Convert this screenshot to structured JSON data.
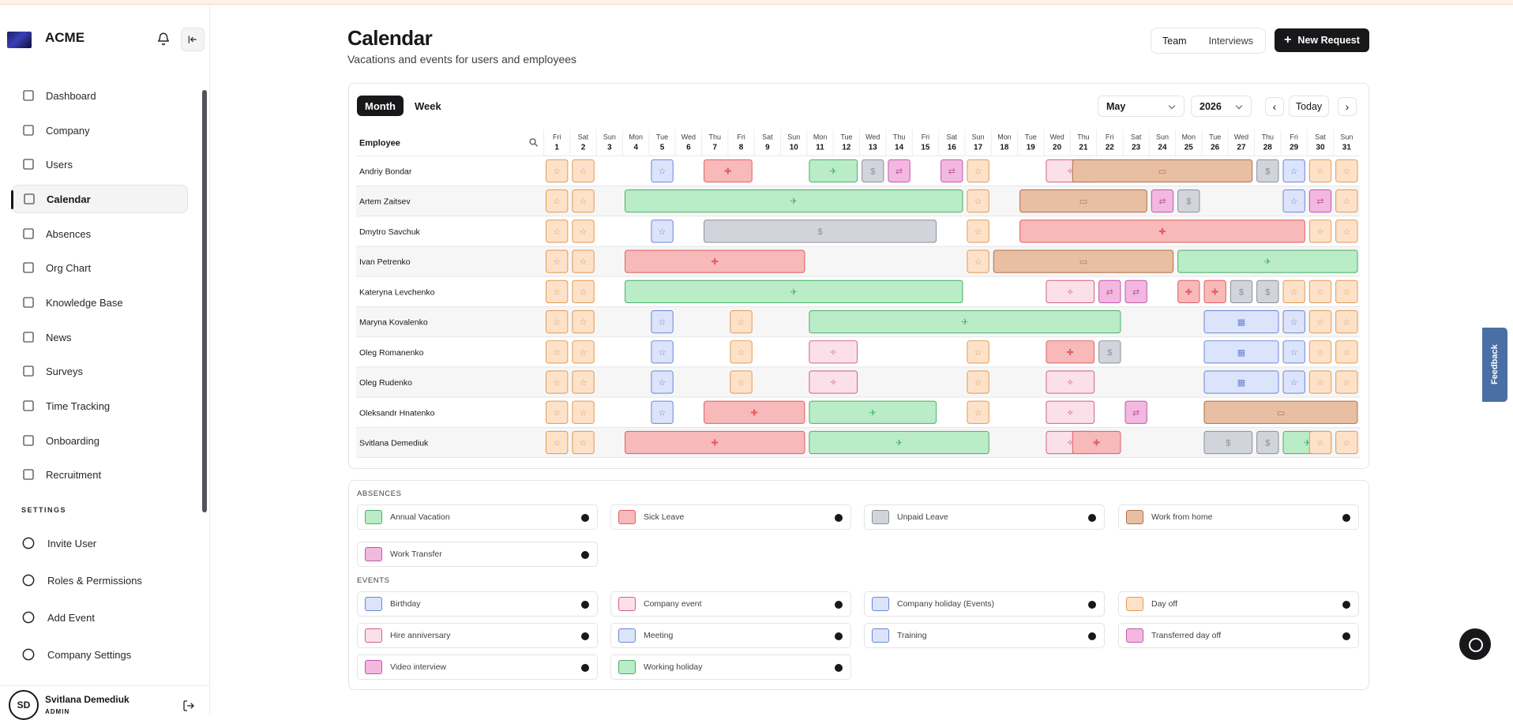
{
  "brand": "ACME",
  "nav": [
    "Dashboard",
    "Company",
    "Users",
    "Calendar",
    "Absences",
    "Org Chart",
    "Knowledge Base",
    "News",
    "Surveys",
    "Time Tracking",
    "Onboarding",
    "Recruitment"
  ],
  "settings_heading": "SETTINGS",
  "settings_nav": [
    "Invite User",
    "Roles & Permissions",
    "Add Event",
    "Company Settings"
  ],
  "user": {
    "initials": "SD",
    "name": "Svitlana Demediuk",
    "role": "ADMIN"
  },
  "page": {
    "title": "Calendar",
    "subtitle": "Vacations and events for users and employees"
  },
  "view_toggle": [
    "Team",
    "Interviews"
  ],
  "new_request": "New Request",
  "tabs": [
    "Month",
    "Week"
  ],
  "month": "May",
  "year": "2026",
  "today": "Today",
  "employee_header": "Employee",
  "days": [
    [
      "Fri",
      "1"
    ],
    [
      "Sat",
      "2"
    ],
    [
      "Sun",
      "3"
    ],
    [
      "Mon",
      "4"
    ],
    [
      "Tue",
      "5"
    ],
    [
      "Wed",
      "6"
    ],
    [
      "Thu",
      "7"
    ],
    [
      "Fri",
      "8"
    ],
    [
      "Sat",
      "9"
    ],
    [
      "Sun",
      "10"
    ],
    [
      "Mon",
      "11"
    ],
    [
      "Tue",
      "12"
    ],
    [
      "Wed",
      "13"
    ],
    [
      "Thu",
      "14"
    ],
    [
      "Fri",
      "15"
    ],
    [
      "Sat",
      "16"
    ],
    [
      "Sun",
      "17"
    ],
    [
      "Mon",
      "18"
    ],
    [
      "Tue",
      "19"
    ],
    [
      "Wed",
      "20"
    ],
    [
      "Thu",
      "21"
    ],
    [
      "Fri",
      "22"
    ],
    [
      "Sat",
      "23"
    ],
    [
      "Sun",
      "24"
    ],
    [
      "Mon",
      "25"
    ],
    [
      "Tue",
      "26"
    ],
    [
      "Wed",
      "27"
    ],
    [
      "Thu",
      "28"
    ],
    [
      "Fri",
      "29"
    ],
    [
      "Sat",
      "30"
    ],
    [
      "Sun",
      "31"
    ]
  ],
  "colors": {
    "vacation": "#b9ecc7",
    "sick": "#f7b9b9",
    "unpaid": "#d1d5db",
    "wfh": "#e9bfa4",
    "transfer": "#f3b8e0",
    "birthday": "#dbe4fb",
    "event": "#fbe0ea",
    "holiday": "#dbe4fb",
    "dayoff": "#fde2c9"
  },
  "employees": [
    {
      "name": "Andriy Bondar",
      "blocks": [
        [
          1,
          1,
          "dayoff"
        ],
        [
          2,
          2,
          "dayoff"
        ],
        [
          5,
          5,
          "holiday"
        ],
        [
          7,
          8,
          "sick"
        ],
        [
          11,
          12,
          "vacation"
        ],
        [
          13,
          13,
          "unpaid"
        ],
        [
          14,
          14,
          "transfer"
        ],
        [
          16,
          16,
          "transfer"
        ],
        [
          17,
          17,
          "dayoff"
        ],
        [
          20,
          21,
          "event"
        ],
        [
          21,
          27,
          "wfh"
        ],
        [
          28,
          28,
          "unpaid"
        ],
        [
          29,
          29,
          "holiday"
        ],
        [
          30,
          30,
          "dayoff"
        ],
        [
          31,
          31,
          "dayoff"
        ]
      ]
    },
    {
      "name": "Artem Zaitsev",
      "blocks": [
        [
          1,
          1,
          "dayoff"
        ],
        [
          2,
          2,
          "dayoff"
        ],
        [
          4,
          16,
          "vacation"
        ],
        [
          17,
          17,
          "dayoff"
        ],
        [
          19,
          23,
          "wfh"
        ],
        [
          24,
          24,
          "transfer"
        ],
        [
          25,
          25,
          "unpaid"
        ],
        [
          29,
          29,
          "holiday"
        ],
        [
          30,
          30,
          "transfer"
        ],
        [
          31,
          31,
          "dayoff"
        ]
      ]
    },
    {
      "name": "Dmytro Savchuk",
      "blocks": [
        [
          1,
          1,
          "dayoff"
        ],
        [
          2,
          2,
          "dayoff"
        ],
        [
          5,
          5,
          "holiday"
        ],
        [
          7,
          15,
          "unpaid"
        ],
        [
          17,
          17,
          "dayoff"
        ],
        [
          19,
          29,
          "sick"
        ],
        [
          30,
          30,
          "dayoff"
        ],
        [
          31,
          31,
          "dayoff"
        ]
      ]
    },
    {
      "name": "Ivan Petrenko",
      "blocks": [
        [
          1,
          1,
          "dayoff"
        ],
        [
          2,
          2,
          "dayoff"
        ],
        [
          4,
          10,
          "sick"
        ],
        [
          17,
          17,
          "dayoff"
        ],
        [
          18,
          24,
          "wfh"
        ],
        [
          25,
          31,
          "vacation"
        ]
      ]
    },
    {
      "name": "Kateryna Levchenko",
      "blocks": [
        [
          1,
          1,
          "dayoff"
        ],
        [
          2,
          2,
          "dayoff"
        ],
        [
          4,
          16,
          "vacation"
        ],
        [
          20,
          21,
          "event"
        ],
        [
          22,
          22,
          "transfer"
        ],
        [
          23,
          23,
          "transfer"
        ],
        [
          25,
          25,
          "sick"
        ],
        [
          26,
          26,
          "sick"
        ],
        [
          27,
          27,
          "unpaid"
        ],
        [
          28,
          28,
          "unpaid"
        ],
        [
          29,
          29,
          "dayoff"
        ],
        [
          30,
          30,
          "dayoff"
        ],
        [
          31,
          31,
          "dayoff"
        ]
      ]
    },
    {
      "name": "Maryna Kovalenko",
      "blocks": [
        [
          1,
          1,
          "dayoff"
        ],
        [
          2,
          2,
          "dayoff"
        ],
        [
          5,
          5,
          "holiday"
        ],
        [
          8,
          8,
          "dayoff"
        ],
        [
          11,
          22,
          "vacation"
        ],
        [
          26,
          28,
          "birthday"
        ],
        [
          29,
          29,
          "holiday"
        ],
        [
          30,
          30,
          "dayoff"
        ],
        [
          31,
          31,
          "dayoff"
        ]
      ]
    },
    {
      "name": "Oleg Romanenko",
      "blocks": [
        [
          1,
          1,
          "dayoff"
        ],
        [
          2,
          2,
          "dayoff"
        ],
        [
          5,
          5,
          "holiday"
        ],
        [
          8,
          8,
          "dayoff"
        ],
        [
          11,
          12,
          "event"
        ],
        [
          17,
          17,
          "dayoff"
        ],
        [
          20,
          21,
          "sick"
        ],
        [
          22,
          22,
          "unpaid"
        ],
        [
          26,
          28,
          "birthday"
        ],
        [
          29,
          29,
          "holiday"
        ],
        [
          30,
          30,
          "dayoff"
        ],
        [
          31,
          31,
          "dayoff"
        ]
      ]
    },
    {
      "name": "Oleg Rudenko",
      "blocks": [
        [
          1,
          1,
          "dayoff"
        ],
        [
          2,
          2,
          "dayoff"
        ],
        [
          5,
          5,
          "holiday"
        ],
        [
          8,
          8,
          "dayoff"
        ],
        [
          11,
          12,
          "event"
        ],
        [
          17,
          17,
          "dayoff"
        ],
        [
          20,
          21,
          "event"
        ],
        [
          26,
          28,
          "birthday"
        ],
        [
          29,
          29,
          "holiday"
        ],
        [
          30,
          30,
          "dayoff"
        ],
        [
          31,
          31,
          "dayoff"
        ]
      ]
    },
    {
      "name": "Oleksandr Hnatenko",
      "blocks": [
        [
          1,
          1,
          "dayoff"
        ],
        [
          2,
          2,
          "dayoff"
        ],
        [
          5,
          5,
          "holiday"
        ],
        [
          7,
          10,
          "sick"
        ],
        [
          11,
          15,
          "vacation"
        ],
        [
          17,
          17,
          "dayoff"
        ],
        [
          20,
          21,
          "event"
        ],
        [
          23,
          23,
          "transfer"
        ],
        [
          26,
          31,
          "wfh"
        ]
      ]
    },
    {
      "name": "Svitlana Demediuk",
      "blocks": [
        [
          1,
          1,
          "dayoff"
        ],
        [
          2,
          2,
          "dayoff"
        ],
        [
          4,
          10,
          "sick"
        ],
        [
          11,
          17,
          "vacation"
        ],
        [
          20,
          21,
          "event"
        ],
        [
          21,
          22,
          "sick"
        ],
        [
          26,
          27,
          "unpaid"
        ],
        [
          28,
          28,
          "unpaid"
        ],
        [
          29,
          30,
          "vacation"
        ],
        [
          30,
          30,
          "dayoff"
        ],
        [
          31,
          31,
          "dayoff"
        ]
      ]
    }
  ],
  "absences_heading": "ABSENCES",
  "absences": [
    [
      "Annual Vacation",
      "vacation"
    ],
    [
      "Sick Leave",
      "sick"
    ],
    [
      "Unpaid Leave",
      "unpaid"
    ],
    [
      "Work from home",
      "wfh"
    ],
    [
      "Work Transfer",
      "transfer"
    ]
  ],
  "events_heading": "EVENTS",
  "events": [
    [
      "Birthday",
      "birthday"
    ],
    [
      "Company event",
      "event"
    ],
    [
      "Company holiday (Events)",
      "holiday"
    ],
    [
      "Day off",
      "dayoff"
    ],
    [
      "Hire anniversary",
      "event"
    ],
    [
      "Meeting",
      "birthday"
    ],
    [
      "Training",
      "birthday"
    ],
    [
      "Transferred day off",
      "transfer"
    ],
    [
      "Video interview",
      "transfer"
    ],
    [
      "Working holiday",
      "vacation"
    ]
  ],
  "feedback": "Feedback"
}
